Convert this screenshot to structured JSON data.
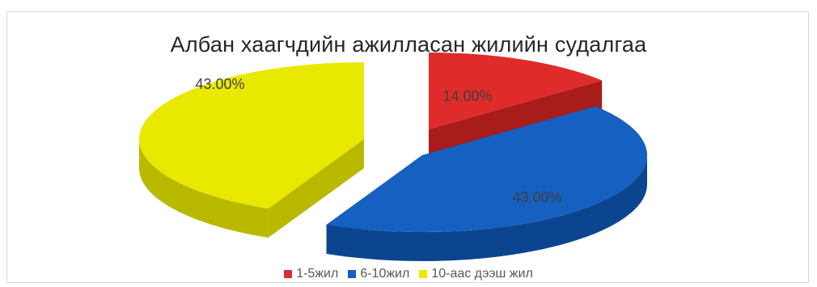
{
  "chart_data": {
    "type": "pie",
    "title": "Албан хаагчдийн ажилласан жилийн судалгаа",
    "categories": [
      "1-5жил",
      "6-10жил",
      "10-аас дээш жил"
    ],
    "values": [
      14,
      43,
      43
    ],
    "data_labels": [
      "14.00%",
      "43.00%",
      "43.00%"
    ],
    "colors": [
      "#e02b2b",
      "#1560c0",
      "#e8e800"
    ],
    "side_colors": [
      "#a81c1c",
      "#0b4590",
      "#b9b900"
    ],
    "legend_position": "bottom",
    "style": "3d-exploded"
  }
}
